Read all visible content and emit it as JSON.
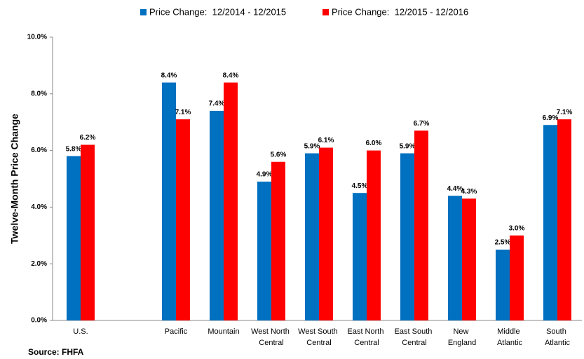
{
  "chart_data": {
    "type": "bar",
    "y_label": "Twelve-Month Price Change",
    "source": "Source: FHFA",
    "categories": [
      "U.S.",
      null,
      "Pacific",
      "Mountain",
      "West North Central",
      "West South Central",
      "East North Central",
      "East South Central",
      "New England",
      "Middle Atlantic",
      "South Atlantic"
    ],
    "series": [
      {
        "name": "Price Change:  12/2014 - 12/2015",
        "color": "#0070c0",
        "values": [
          5.8,
          null,
          8.4,
          7.4,
          4.9,
          5.9,
          4.5,
          5.9,
          4.4,
          2.5,
          6.9
        ],
        "value_labels": [
          "5.8%",
          null,
          "8.4%",
          "7.4%",
          "4.9%",
          "5.9%",
          "4.5%",
          "5.9%",
          "4.4%",
          "2.5%",
          "6.9%"
        ]
      },
      {
        "name": "Price Change:  12/2015 - 12/2016",
        "color": "#ff0000",
        "values": [
          6.2,
          null,
          7.1,
          8.4,
          5.6,
          6.1,
          6.0,
          6.7,
          4.3,
          3.0,
          7.1
        ],
        "value_labels": [
          "6.2%",
          null,
          "7.1%",
          "8.4%",
          "5.6%",
          "6.1%",
          "6.0%",
          "6.7%",
          "4.3%",
          "3.0%",
          "7.1%"
        ]
      }
    ],
    "ylim": [
      0,
      10
    ],
    "yticks": [
      {
        "value": 0,
        "label": "0.0%"
      },
      {
        "value": 2,
        "label": "2.0%"
      },
      {
        "value": 4,
        "label": "4.0%"
      },
      {
        "value": 6,
        "label": "6.0%"
      },
      {
        "value": 8,
        "label": "8.0%"
      },
      {
        "value": 10,
        "label": "10.0%"
      }
    ],
    "legend": "top"
  }
}
